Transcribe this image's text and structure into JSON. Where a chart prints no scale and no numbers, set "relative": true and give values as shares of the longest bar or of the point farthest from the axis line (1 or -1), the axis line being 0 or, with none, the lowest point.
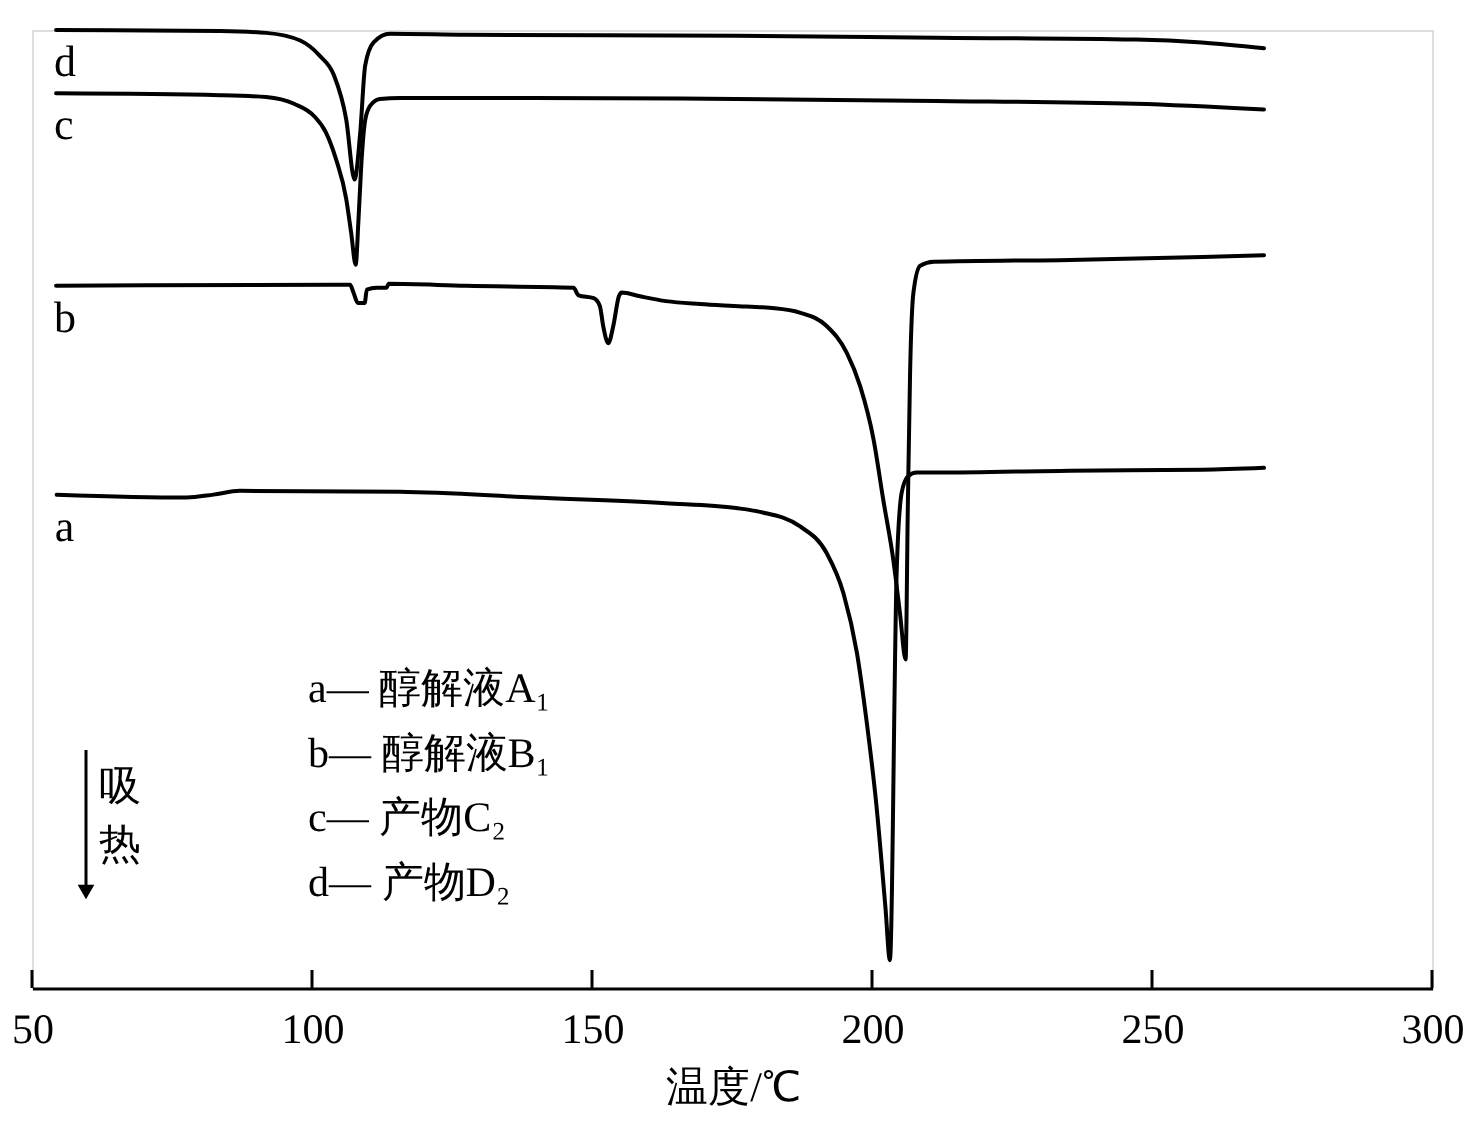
{
  "chart_data": {
    "type": "line",
    "relative": true,
    "xlabel": "温度/℃",
    "xlim": [
      50,
      300
    ],
    "xticks": [
      50,
      100,
      150,
      200,
      250,
      300
    ],
    "line_style": "solid",
    "annotations": [
      "a— 醇解液A₁",
      "b— 醇解液B₁",
      "c— 产物C₂",
      "d— 产物D₂",
      "吸热"
    ],
    "series": [
      {
        "name": "a",
        "color": "#000000",
        "x": [
          54.4,
          77.6,
          82.4,
          87.1,
          115.7,
          139.5,
          163.2,
          175.7,
          180.0,
          187.1,
          191.9,
          194.9,
          197.3,
          199.0,
          200.8,
          202.4,
          203.2,
          204.4,
          205.3,
          206.4,
          208.0,
          211.4,
          235.3,
          259.0,
          270.0
        ],
        "values": [
          0.515,
          0.512,
          0.515,
          0.519,
          0.518,
          0.512,
          0.506,
          0.501,
          0.497,
          0.482,
          0.454,
          0.412,
          0.35,
          0.28,
          0.19,
          0.084,
          0.029,
          0.433,
          0.517,
          0.534,
          0.538,
          0.538,
          0.54,
          0.541,
          0.543
        ]
      },
      {
        "name": "b",
        "color": "#000000",
        "x": [
          54.3,
          103.9,
          106.8,
          107.4,
          108.2,
          109.4,
          109.8,
          111.5,
          113.3,
          113.7,
          127.5,
          146.7,
          147.6,
          150.3,
          151.4,
          152.0,
          152.9,
          153.8,
          154.8,
          155.3,
          158.6,
          163.2,
          169.3,
          175.3,
          181.7,
          187.1,
          191.9,
          195.5,
          197.9,
          200.3,
          202.0,
          203.8,
          205.0,
          206.0,
          206.4,
          206.8,
          207.4,
          208.6,
          211.0,
          235.3,
          259.0,
          270.0
        ],
        "values": [
          0.733,
          0.734,
          0.734,
          0.726,
          0.715,
          0.715,
          0.729,
          0.731,
          0.731,
          0.735,
          0.733,
          0.731,
          0.723,
          0.72,
          0.712,
          0.691,
          0.673,
          0.691,
          0.722,
          0.726,
          0.722,
          0.717,
          0.714,
          0.712,
          0.71,
          0.705,
          0.691,
          0.663,
          0.628,
          0.572,
          0.51,
          0.447,
          0.391,
          0.343,
          0.503,
          0.642,
          0.726,
          0.754,
          0.758,
          0.76,
          0.763,
          0.765
        ]
      },
      {
        "name": "c",
        "color": "#000000",
        "x": [
          54.3,
          83.6,
          91.8,
          96.8,
          100.4,
          102.5,
          104.3,
          106.1,
          107.0,
          107.8,
          108.3,
          108.8,
          109.5,
          110.4,
          112.1,
          115.7,
          139.6,
          175.7,
          211.4,
          247.1,
          270.0
        ],
        "values": [
          0.934,
          0.932,
          0.93,
          0.923,
          0.91,
          0.893,
          0.865,
          0.824,
          0.788,
          0.755,
          0.802,
          0.859,
          0.906,
          0.921,
          0.928,
          0.929,
          0.929,
          0.928,
          0.926,
          0.923,
          0.917
        ]
      },
      {
        "name": "d",
        "color": "#000000",
        "x": [
          54.3,
          83.6,
          91.8,
          97.9,
          101.4,
          103.9,
          106.1,
          107.6,
          108.6,
          109.5,
          111.0,
          113.9,
          127.5,
          175.7,
          211.4,
          247.1,
          258.9,
          270.0
        ],
        "values": [
          1.0,
          0.999,
          0.997,
          0.989,
          0.973,
          0.953,
          0.907,
          0.844,
          0.892,
          0.963,
          0.987,
          0.996,
          0.995,
          0.994,
          0.992,
          0.99,
          0.987,
          0.981
        ]
      }
    ]
  }
}
